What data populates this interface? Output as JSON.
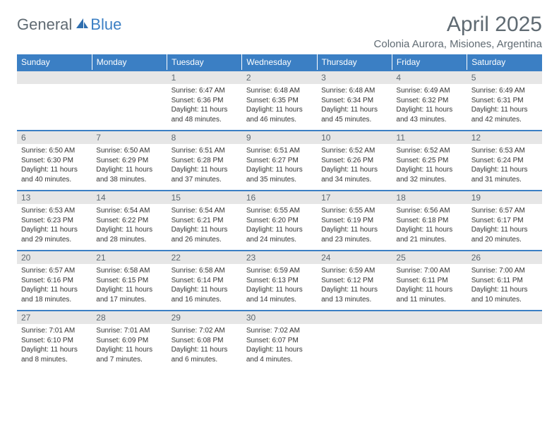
{
  "logo": {
    "general": "General",
    "blue": "Blue"
  },
  "title": "April 2025",
  "location": "Colonia Aurora, Misiones, Argentina",
  "colors": {
    "header_bg": "#3b7fc4",
    "header_text": "#ffffff",
    "daynum_bg": "#e6e6e6",
    "daynum_text": "#5f6a72",
    "body_text": "#333333",
    "rule": "#3b7fc4",
    "logo_gray": "#5f6a72",
    "logo_blue": "#3b7fc4"
  },
  "typography": {
    "title_fontsize": 30,
    "location_fontsize": 15,
    "weekday_fontsize": 12,
    "daynum_fontsize": 12,
    "body_fontsize": 10
  },
  "weekdays": [
    "Sunday",
    "Monday",
    "Tuesday",
    "Wednesday",
    "Thursday",
    "Friday",
    "Saturday"
  ],
  "weeks": [
    [
      null,
      null,
      {
        "n": "1",
        "sr": "Sunrise: 6:47 AM",
        "ss": "Sunset: 6:36 PM",
        "dl": "Daylight: 11 hours and 48 minutes."
      },
      {
        "n": "2",
        "sr": "Sunrise: 6:48 AM",
        "ss": "Sunset: 6:35 PM",
        "dl": "Daylight: 11 hours and 46 minutes."
      },
      {
        "n": "3",
        "sr": "Sunrise: 6:48 AM",
        "ss": "Sunset: 6:34 PM",
        "dl": "Daylight: 11 hours and 45 minutes."
      },
      {
        "n": "4",
        "sr": "Sunrise: 6:49 AM",
        "ss": "Sunset: 6:32 PM",
        "dl": "Daylight: 11 hours and 43 minutes."
      },
      {
        "n": "5",
        "sr": "Sunrise: 6:49 AM",
        "ss": "Sunset: 6:31 PM",
        "dl": "Daylight: 11 hours and 42 minutes."
      }
    ],
    [
      {
        "n": "6",
        "sr": "Sunrise: 6:50 AM",
        "ss": "Sunset: 6:30 PM",
        "dl": "Daylight: 11 hours and 40 minutes."
      },
      {
        "n": "7",
        "sr": "Sunrise: 6:50 AM",
        "ss": "Sunset: 6:29 PM",
        "dl": "Daylight: 11 hours and 38 minutes."
      },
      {
        "n": "8",
        "sr": "Sunrise: 6:51 AM",
        "ss": "Sunset: 6:28 PM",
        "dl": "Daylight: 11 hours and 37 minutes."
      },
      {
        "n": "9",
        "sr": "Sunrise: 6:51 AM",
        "ss": "Sunset: 6:27 PM",
        "dl": "Daylight: 11 hours and 35 minutes."
      },
      {
        "n": "10",
        "sr": "Sunrise: 6:52 AM",
        "ss": "Sunset: 6:26 PM",
        "dl": "Daylight: 11 hours and 34 minutes."
      },
      {
        "n": "11",
        "sr": "Sunrise: 6:52 AM",
        "ss": "Sunset: 6:25 PM",
        "dl": "Daylight: 11 hours and 32 minutes."
      },
      {
        "n": "12",
        "sr": "Sunrise: 6:53 AM",
        "ss": "Sunset: 6:24 PM",
        "dl": "Daylight: 11 hours and 31 minutes."
      }
    ],
    [
      {
        "n": "13",
        "sr": "Sunrise: 6:53 AM",
        "ss": "Sunset: 6:23 PM",
        "dl": "Daylight: 11 hours and 29 minutes."
      },
      {
        "n": "14",
        "sr": "Sunrise: 6:54 AM",
        "ss": "Sunset: 6:22 PM",
        "dl": "Daylight: 11 hours and 28 minutes."
      },
      {
        "n": "15",
        "sr": "Sunrise: 6:54 AM",
        "ss": "Sunset: 6:21 PM",
        "dl": "Daylight: 11 hours and 26 minutes."
      },
      {
        "n": "16",
        "sr": "Sunrise: 6:55 AM",
        "ss": "Sunset: 6:20 PM",
        "dl": "Daylight: 11 hours and 24 minutes."
      },
      {
        "n": "17",
        "sr": "Sunrise: 6:55 AM",
        "ss": "Sunset: 6:19 PM",
        "dl": "Daylight: 11 hours and 23 minutes."
      },
      {
        "n": "18",
        "sr": "Sunrise: 6:56 AM",
        "ss": "Sunset: 6:18 PM",
        "dl": "Daylight: 11 hours and 21 minutes."
      },
      {
        "n": "19",
        "sr": "Sunrise: 6:57 AM",
        "ss": "Sunset: 6:17 PM",
        "dl": "Daylight: 11 hours and 20 minutes."
      }
    ],
    [
      {
        "n": "20",
        "sr": "Sunrise: 6:57 AM",
        "ss": "Sunset: 6:16 PM",
        "dl": "Daylight: 11 hours and 18 minutes."
      },
      {
        "n": "21",
        "sr": "Sunrise: 6:58 AM",
        "ss": "Sunset: 6:15 PM",
        "dl": "Daylight: 11 hours and 17 minutes."
      },
      {
        "n": "22",
        "sr": "Sunrise: 6:58 AM",
        "ss": "Sunset: 6:14 PM",
        "dl": "Daylight: 11 hours and 16 minutes."
      },
      {
        "n": "23",
        "sr": "Sunrise: 6:59 AM",
        "ss": "Sunset: 6:13 PM",
        "dl": "Daylight: 11 hours and 14 minutes."
      },
      {
        "n": "24",
        "sr": "Sunrise: 6:59 AM",
        "ss": "Sunset: 6:12 PM",
        "dl": "Daylight: 11 hours and 13 minutes."
      },
      {
        "n": "25",
        "sr": "Sunrise: 7:00 AM",
        "ss": "Sunset: 6:11 PM",
        "dl": "Daylight: 11 hours and 11 minutes."
      },
      {
        "n": "26",
        "sr": "Sunrise: 7:00 AM",
        "ss": "Sunset: 6:11 PM",
        "dl": "Daylight: 11 hours and 10 minutes."
      }
    ],
    [
      {
        "n": "27",
        "sr": "Sunrise: 7:01 AM",
        "ss": "Sunset: 6:10 PM",
        "dl": "Daylight: 11 hours and 8 minutes."
      },
      {
        "n": "28",
        "sr": "Sunrise: 7:01 AM",
        "ss": "Sunset: 6:09 PM",
        "dl": "Daylight: 11 hours and 7 minutes."
      },
      {
        "n": "29",
        "sr": "Sunrise: 7:02 AM",
        "ss": "Sunset: 6:08 PM",
        "dl": "Daylight: 11 hours and 6 minutes."
      },
      {
        "n": "30",
        "sr": "Sunrise: 7:02 AM",
        "ss": "Sunset: 6:07 PM",
        "dl": "Daylight: 11 hours and 4 minutes."
      },
      null,
      null,
      null
    ]
  ]
}
